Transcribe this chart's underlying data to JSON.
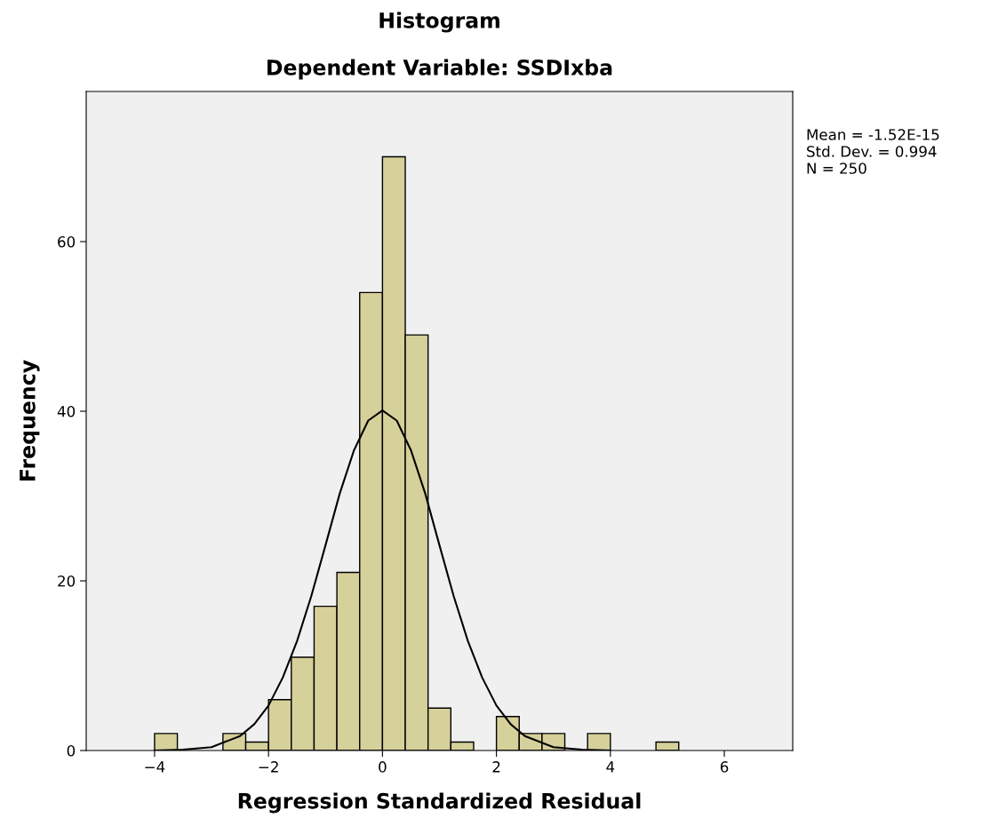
{
  "chart_data": {
    "type": "histogram",
    "title": "Histogram",
    "subtitle": "Dependent Variable: SSDIxba",
    "xlabel": "Regression Standardized Residual",
    "ylabel": "Frequency",
    "bins": [
      -4.0,
      -3.6,
      -3.2,
      -2.8,
      -2.4,
      -2.0,
      -1.6,
      -1.2,
      -0.8,
      -0.4,
      0.0,
      0.4,
      0.8,
      1.2,
      1.6,
      2.0,
      2.4,
      2.8,
      3.2,
      3.6,
      4.0,
      4.4,
      4.8,
      5.2
    ],
    "values": [
      2,
      0,
      0,
      2,
      1,
      6,
      11,
      17,
      21,
      54,
      70,
      49,
      5,
      1,
      0,
      4,
      2,
      2,
      0,
      2,
      0,
      0,
      1
    ],
    "color": "#d6d09a",
    "series": [
      {
        "type": "line",
        "color": "#000000",
        "x": [
          -4.0,
          -3.5,
          -3.0,
          -2.5,
          -2.25,
          -2.0,
          -1.75,
          -1.5,
          -1.25,
          -1.0,
          -0.75,
          -0.5,
          -0.25,
          0.0,
          0.25,
          0.5,
          0.75,
          1.0,
          1.25,
          1.5,
          1.75,
          2.0,
          2.25,
          2.5,
          3.0,
          3.5,
          4.0
        ],
        "values": [
          0.0,
          0.1,
          0.4,
          1.7,
          3.1,
          5.3,
          8.6,
          12.9,
          18.2,
          24.2,
          30.3,
          35.4,
          38.9,
          40.1,
          38.9,
          35.4,
          30.3,
          24.2,
          18.2,
          12.9,
          8.6,
          5.3,
          3.1,
          1.7,
          0.4,
          0.1,
          0.0
        ]
      }
    ],
    "xlim": [
      -5.2,
      7.2
    ],
    "ylim": [
      0,
      77.7
    ],
    "xticks": [
      -4,
      -2,
      0,
      2,
      4,
      6
    ],
    "yticks": [
      0,
      20,
      40,
      60
    ],
    "grid": false,
    "legend": false,
    "annotations": [
      "Mean = -1.52E-15",
      "Std. Dev. = 0.994",
      "N = 250"
    ]
  }
}
